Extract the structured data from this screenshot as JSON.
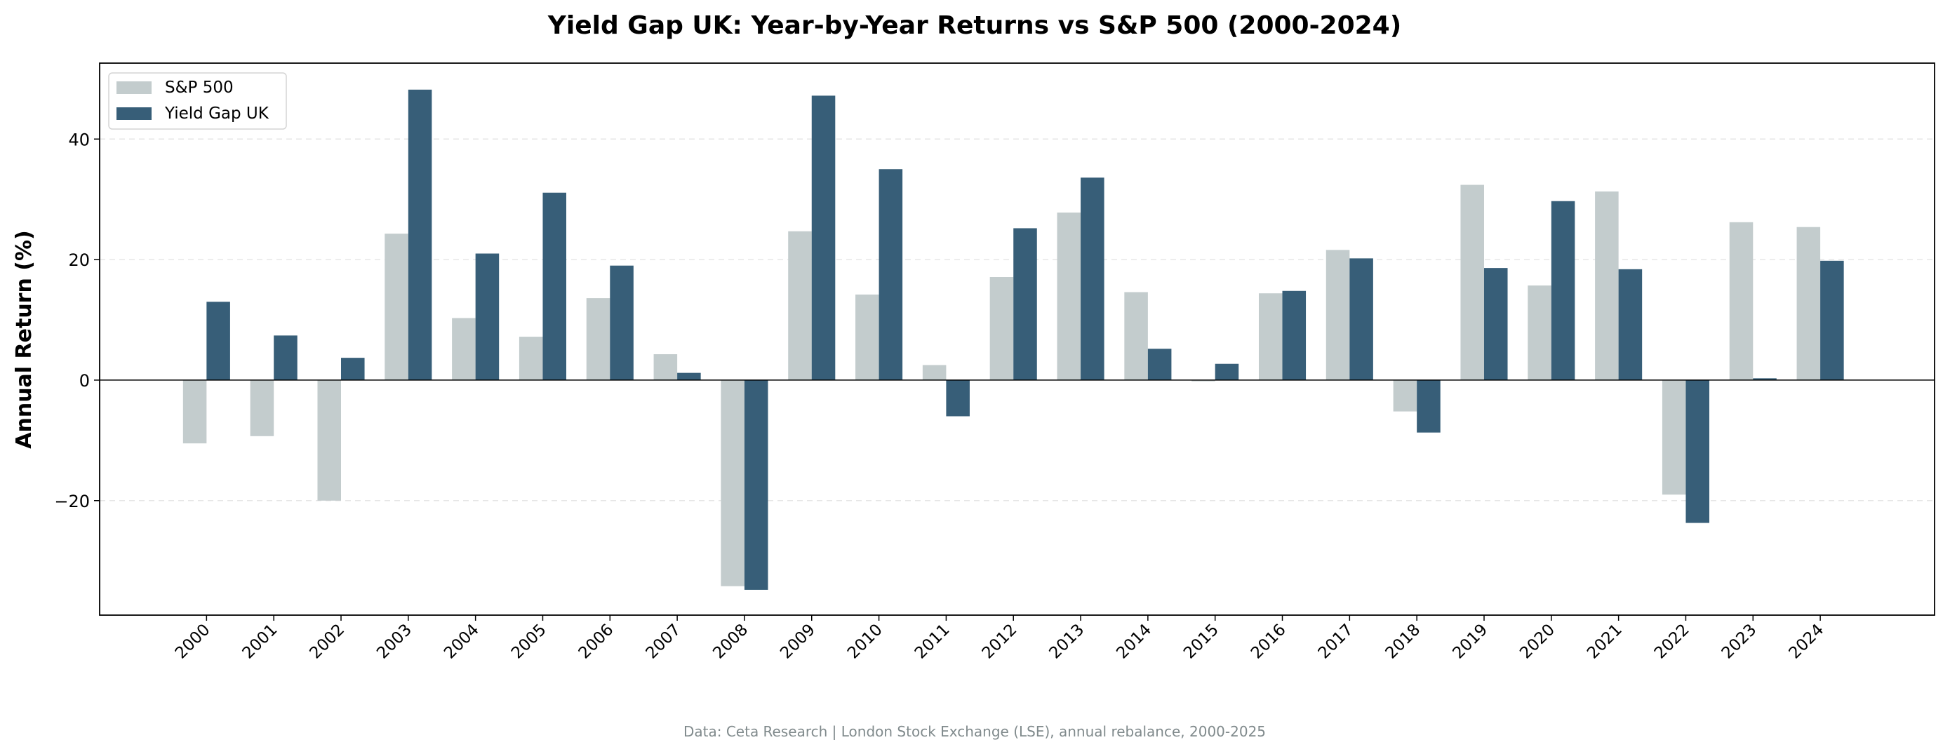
{
  "chart_data": {
    "type": "bar",
    "title": "Yield Gap UK: Year-by-Year Returns vs S&P 500 (2000-2024)",
    "xlabel": "",
    "ylabel": "Annual Return (%)",
    "ylim": [
      -39,
      52.6
    ],
    "yticks": [
      -20,
      0,
      20,
      40
    ],
    "grid": "y, dashed",
    "legend": "top-left",
    "categories": [
      "2000",
      "2001",
      "2002",
      "2003",
      "2004",
      "2005",
      "2006",
      "2007",
      "2008",
      "2009",
      "2010",
      "2011",
      "2012",
      "2013",
      "2014",
      "2015",
      "2016",
      "2017",
      "2018",
      "2019",
      "2020",
      "2021",
      "2022",
      "2023",
      "2024"
    ],
    "series": [
      {
        "name": "S&P 500",
        "color": "#c3cccd",
        "values": [
          -10.5,
          -9.3,
          -20.0,
          24.3,
          10.3,
          7.2,
          13.6,
          4.3,
          -34.2,
          24.7,
          14.2,
          2.5,
          17.1,
          27.8,
          14.6,
          -0.2,
          14.4,
          21.6,
          -5.2,
          32.4,
          15.7,
          31.3,
          -19.0,
          26.2,
          25.4
        ]
      },
      {
        "name": "Yield Gap UK",
        "color": "#375e78",
        "values": [
          13.0,
          7.4,
          3.7,
          48.2,
          21.0,
          31.1,
          19.0,
          1.2,
          -34.8,
          47.2,
          35.0,
          -6.0,
          25.2,
          33.6,
          5.2,
          2.7,
          14.8,
          20.2,
          -8.7,
          18.6,
          29.7,
          18.4,
          -23.7,
          0.3,
          19.8
        ]
      }
    ],
    "footer": "Data: Ceta Research | London Stock Exchange (LSE), annual rebalance, 2000-2025"
  }
}
